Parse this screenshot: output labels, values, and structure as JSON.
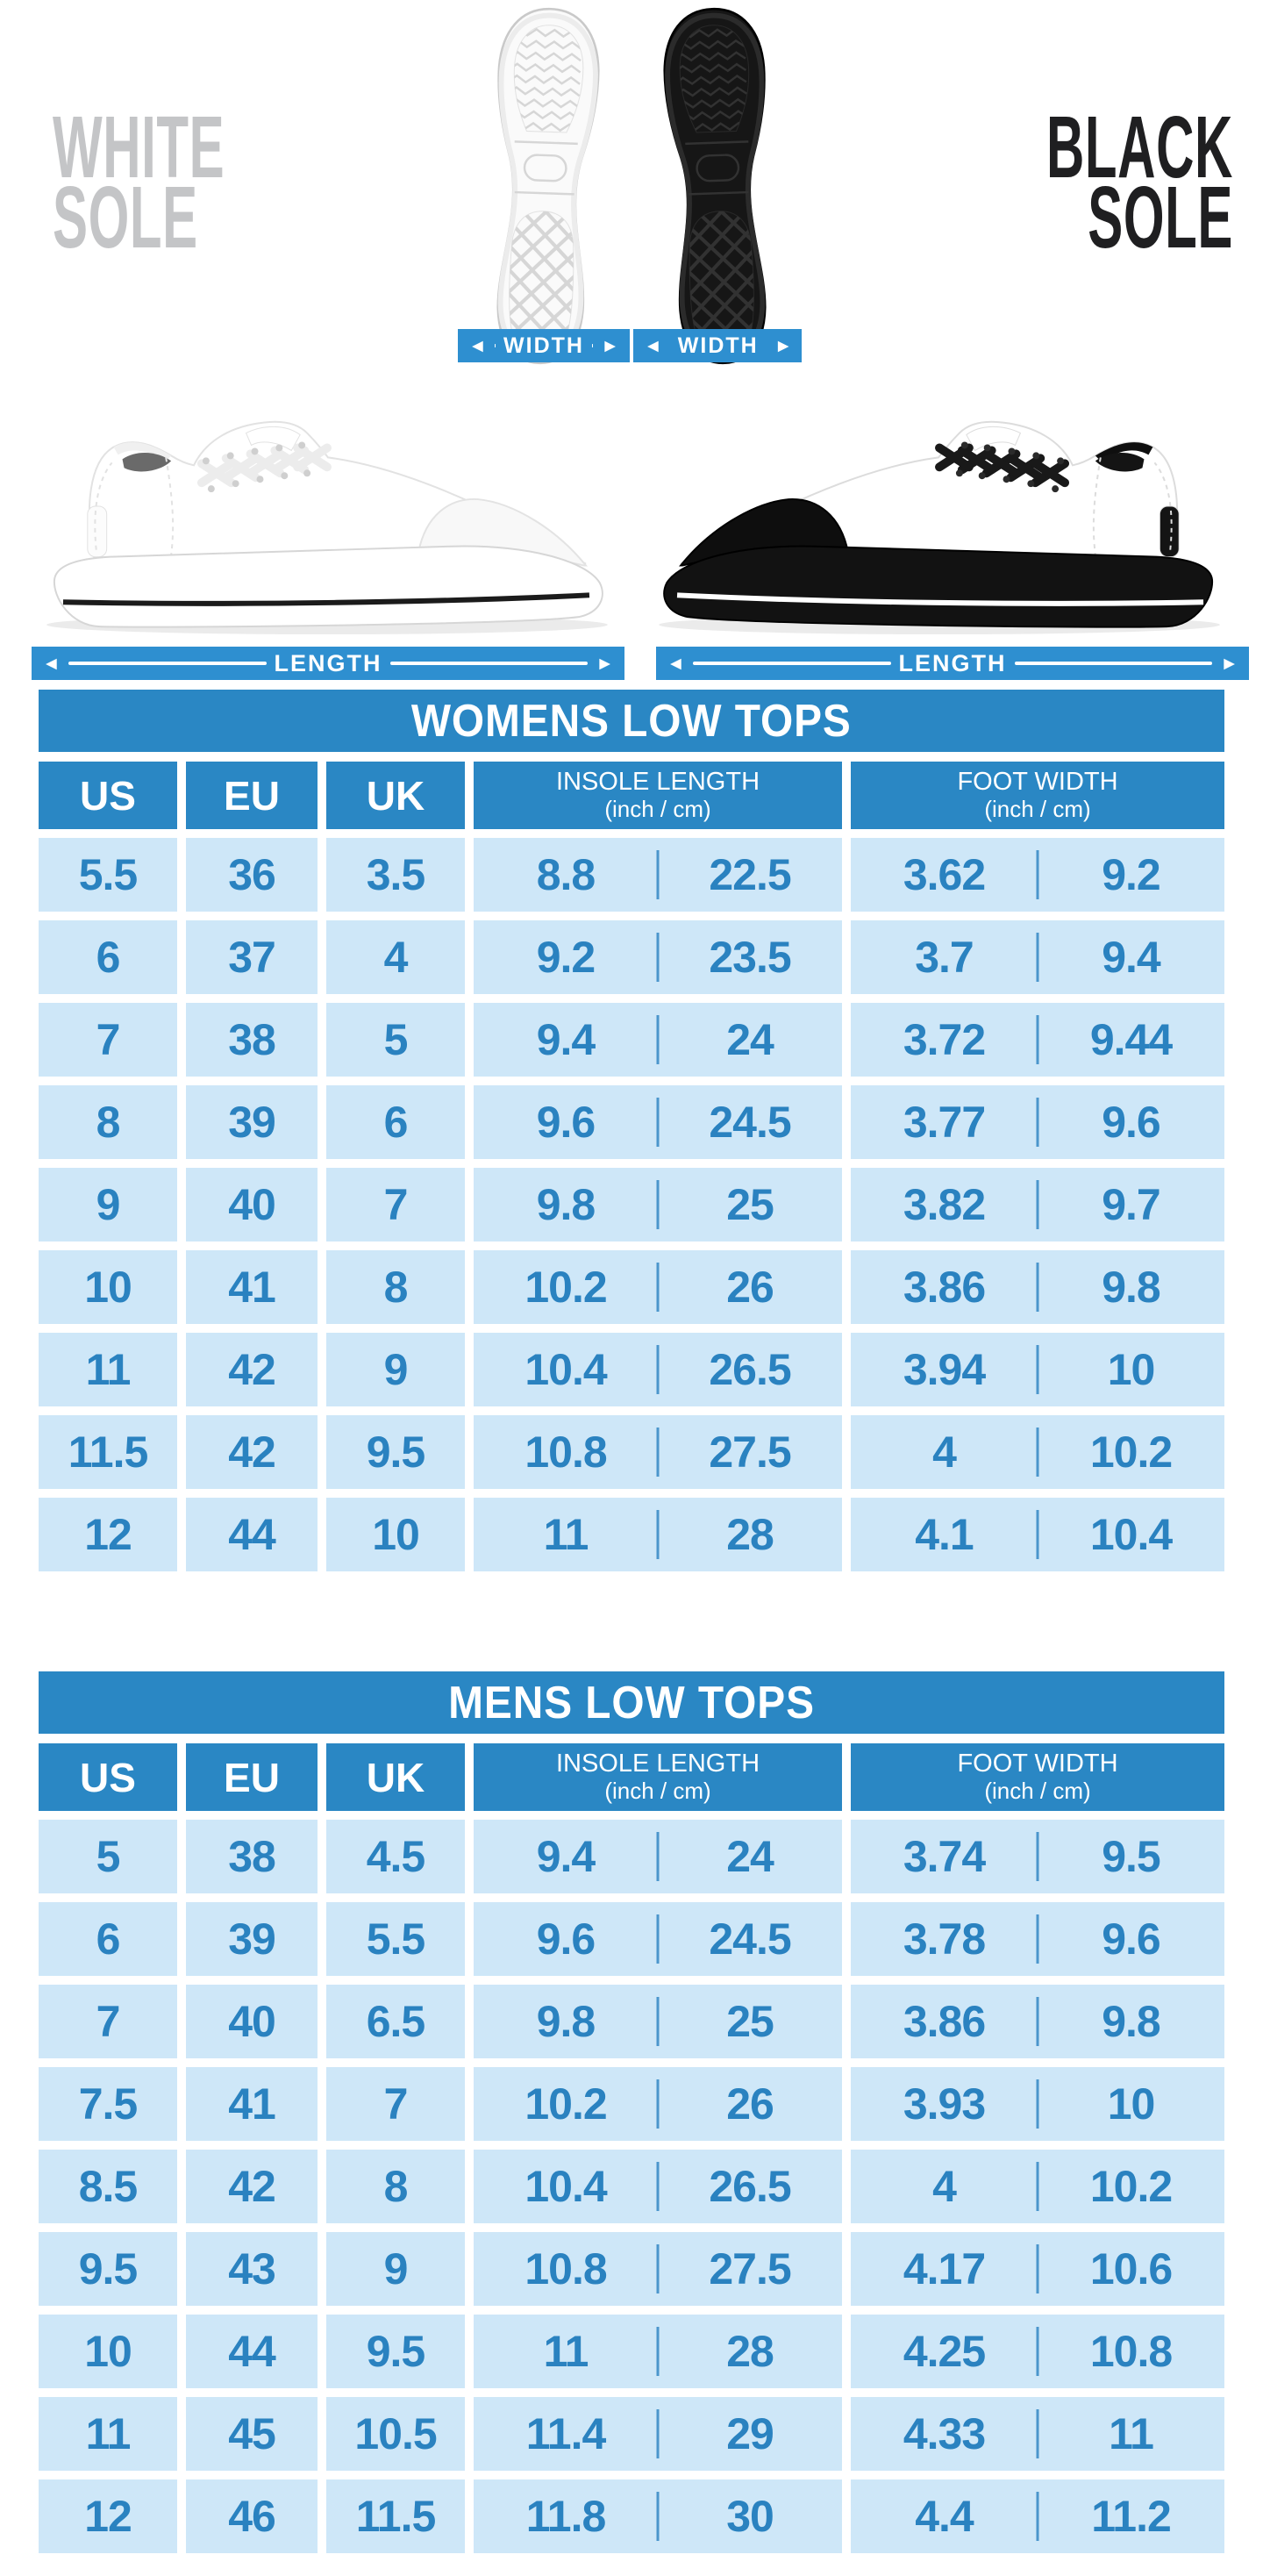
{
  "colors": {
    "accent_blue": "#2a87c4",
    "banner_blue": "#2e8fd0",
    "row_bg": "#cee7f8",
    "cell_text": "#2a82c0",
    "white_sole_label": "#c4c5c7",
    "black_sole_label": "#1f1f21"
  },
  "icons": {
    "arrow_left": "◄",
    "arrow_right": "►",
    "white_sole_image": "white-sole-top-view",
    "black_sole_image": "black-sole-top-view",
    "white_shoe_image": "white-low-top-sneaker-side-view",
    "black_shoe_image": "black-white-low-top-sneaker-side-view"
  },
  "hero": {
    "white_sole_label": {
      "line1": "WHITE",
      "line2": "SOLE"
    },
    "black_sole_label": {
      "line1": "BLACK",
      "line2": "SOLE"
    },
    "width_label": "WIDTH",
    "length_label": "LENGTH"
  },
  "tables": [
    {
      "title": "WOMENS LOW TOPS",
      "columns": [
        "US",
        "EU",
        "UK",
        "INSOLE LENGTH",
        "FOOT WIDTH"
      ],
      "split_sub": "(inch / cm)",
      "rows": [
        [
          "5.5",
          "36",
          "3.5",
          "8.8",
          "22.5",
          "3.62",
          "9.2"
        ],
        [
          "6",
          "37",
          "4",
          "9.2",
          "23.5",
          "3.7",
          "9.4"
        ],
        [
          "7",
          "38",
          "5",
          "9.4",
          "24",
          "3.72",
          "9.44"
        ],
        [
          "8",
          "39",
          "6",
          "9.6",
          "24.5",
          "3.77",
          "9.6"
        ],
        [
          "9",
          "40",
          "7",
          "9.8",
          "25",
          "3.82",
          "9.7"
        ],
        [
          "10",
          "41",
          "8",
          "10.2",
          "26",
          "3.86",
          "9.8"
        ],
        [
          "11",
          "42",
          "9",
          "10.4",
          "26.5",
          "3.94",
          "10"
        ],
        [
          "11.5",
          "42",
          "9.5",
          "10.8",
          "27.5",
          "4",
          "10.2"
        ],
        [
          "12",
          "44",
          "10",
          "11",
          "28",
          "4.1",
          "10.4"
        ]
      ]
    },
    {
      "title": "MENS LOW TOPS",
      "columns": [
        "US",
        "EU",
        "UK",
        "INSOLE LENGTH",
        "FOOT WIDTH"
      ],
      "split_sub": "(inch / cm)",
      "rows": [
        [
          "5",
          "38",
          "4.5",
          "9.4",
          "24",
          "3.74",
          "9.5"
        ],
        [
          "6",
          "39",
          "5.5",
          "9.6",
          "24.5",
          "3.78",
          "9.6"
        ],
        [
          "7",
          "40",
          "6.5",
          "9.8",
          "25",
          "3.86",
          "9.8"
        ],
        [
          "7.5",
          "41",
          "7",
          "10.2",
          "26",
          "3.93",
          "10"
        ],
        [
          "8.5",
          "42",
          "8",
          "10.4",
          "26.5",
          "4",
          "10.2"
        ],
        [
          "9.5",
          "43",
          "9",
          "10.8",
          "27.5",
          "4.17",
          "10.6"
        ],
        [
          "10",
          "44",
          "9.5",
          "11",
          "28",
          "4.25",
          "10.8"
        ],
        [
          "11",
          "45",
          "10.5",
          "11.4",
          "29",
          "4.33",
          "11"
        ],
        [
          "12",
          "46",
          "11.5",
          "11.8",
          "30",
          "4.4",
          "11.2"
        ]
      ]
    }
  ]
}
